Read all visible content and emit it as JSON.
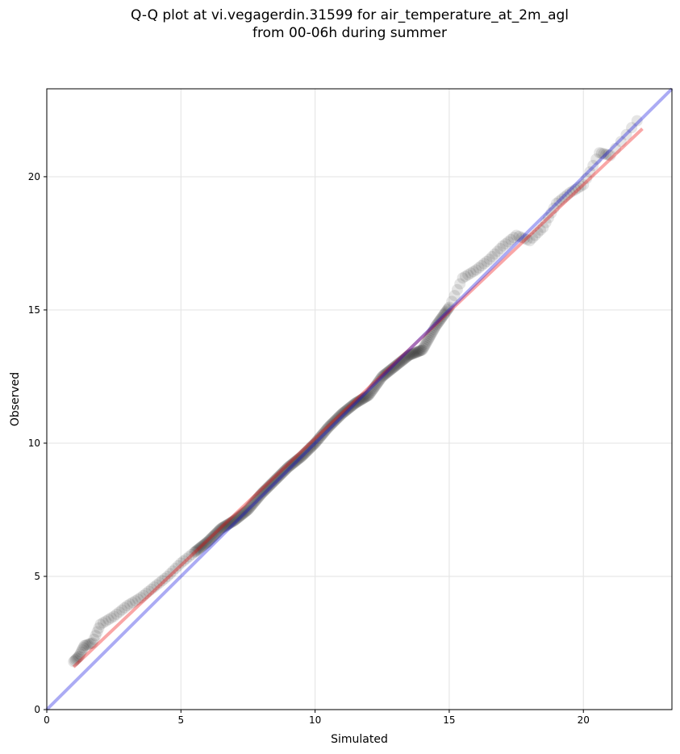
{
  "title_line1": "Q-Q plot at vi.vegagerdin.31599 for air_temperature_at_2m_agl",
  "title_line2": "from 00-06h during summer",
  "chart_data": {
    "type": "scatter",
    "xlabel": "Simulated",
    "ylabel": "Observed",
    "xlim": [
      0,
      23.3
    ],
    "ylim": [
      0,
      23.3
    ],
    "xticks": [
      0,
      5,
      10,
      15,
      20
    ],
    "yticks": [
      0,
      5,
      10,
      15,
      20
    ],
    "grid": true,
    "points_color": "#000000",
    "points_alpha": 0.1,
    "identity_line_color": "#0000dd",
    "fit_line_color": "#ee0000",
    "identity_line": {
      "x": [
        0,
        23.3
      ],
      "y": [
        0,
        23.3
      ]
    },
    "fit_line": {
      "x": [
        1.0,
        22.2
      ],
      "y": [
        1.6,
        21.8
      ]
    },
    "quantiles_x": [
      1.0,
      1.2,
      1.4,
      1.7,
      2.0,
      2.5,
      3.0,
      3.5,
      4.0,
      4.5,
      5.0,
      5.5,
      6.0,
      6.5,
      7.0,
      7.5,
      8.0,
      8.5,
      9.0,
      9.5,
      10.0,
      10.5,
      11.0,
      11.5,
      12.0,
      12.5,
      13.0,
      13.5,
      14.0,
      14.5,
      15.0,
      15.5,
      16.0,
      16.5,
      17.0,
      17.5,
      18.0,
      18.5,
      19.0,
      19.5,
      20.0,
      20.6,
      21.0,
      22.0
    ],
    "quantiles_y": [
      1.8,
      2.0,
      2.4,
      2.5,
      3.2,
      3.5,
      3.9,
      4.2,
      4.6,
      5.0,
      5.5,
      5.9,
      6.3,
      6.8,
      7.1,
      7.5,
      8.1,
      8.6,
      9.1,
      9.5,
      10.0,
      10.6,
      11.1,
      11.5,
      11.8,
      12.5,
      12.9,
      13.3,
      13.5,
      14.4,
      15.1,
      16.2,
      16.5,
      16.9,
      17.4,
      17.8,
      17.6,
      18.1,
      19.0,
      19.4,
      19.7,
      20.9,
      20.8,
      22.1
    ]
  }
}
